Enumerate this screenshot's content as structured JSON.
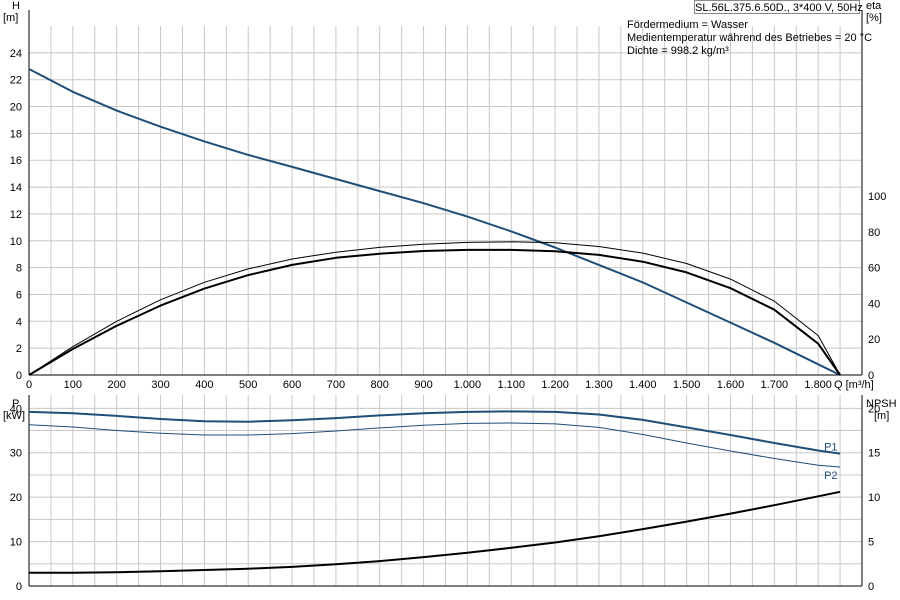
{
  "chart_data": [
    {
      "type": "line",
      "title": "SL.56L.375.6.50D., 3*400 V, 50Hz",
      "annotations": [
        "Fördermedium = Wasser",
        "Medientemperatur während des Betriebes = 20 °C",
        "Dichte = 998.2 kg/m³"
      ],
      "xlabel": "Q [m³/h]",
      "xlim": [
        0,
        1900
      ],
      "xticks": [
        0,
        100,
        200,
        300,
        400,
        500,
        600,
        700,
        800,
        900,
        1000,
        1100,
        1200,
        1300,
        1400,
        1500,
        1600,
        1700,
        1800
      ],
      "xtick_labels": [
        "0",
        "100",
        "200",
        "300",
        "400",
        "500",
        "600",
        "700",
        "800",
        "900",
        "1.000",
        "1.100",
        "1.200",
        "1.300",
        "1.400",
        "1.500",
        "1.600",
        "1.700",
        "1.800"
      ],
      "ylabel_left": "H",
      "ylabel_left_unit": "[m]",
      "ylim_left": [
        0,
        26
      ],
      "yticks_left": [
        0,
        2,
        4,
        6,
        8,
        10,
        12,
        14,
        16,
        18,
        20,
        22,
        24
      ],
      "ylabel_right": "eta",
      "ylabel_right_unit": "[%]",
      "ylim_right": [
        0,
        195
      ],
      "yticks_right": [
        0,
        20,
        40,
        60,
        80,
        100
      ],
      "grid": true,
      "series": [
        {
          "axis": "left",
          "color": "#1f4e79",
          "x": [
            0,
            100,
            200,
            300,
            400,
            500,
            600,
            700,
            800,
            900,
            1000,
            1100,
            1200,
            1300,
            1400,
            1500,
            1600,
            1700,
            1800,
            1850
          ],
          "y": [
            22.8,
            21.1,
            19.7,
            18.5,
            17.4,
            16.4,
            15.5,
            14.6,
            13.7,
            12.8,
            11.8,
            10.7,
            9.5,
            8.2,
            6.9,
            5.4,
            3.9,
            2.4,
            0.8,
            0
          ]
        },
        {
          "axis": "right",
          "color": "#000000",
          "x": [
            0,
            100,
            200,
            300,
            400,
            500,
            600,
            700,
            800,
            900,
            1000,
            1100,
            1200,
            1300,
            1400,
            1500,
            1600,
            1700,
            1800,
            1850
          ],
          "y": [
            0,
            14.5,
            27.5,
            38.8,
            48.3,
            55.8,
            61.5,
            65.5,
            67.8,
            69.3,
            69.9,
            69.9,
            69.1,
            67.1,
            63.3,
            57.3,
            48.5,
            36.5,
            17.5,
            0
          ]
        },
        {
          "axis": "right",
          "color": "#000000",
          "thin": true,
          "x": [
            0,
            100,
            200,
            300,
            400,
            500,
            600,
            700,
            800,
            900,
            1000,
            1100,
            1200,
            1300,
            1400,
            1500,
            1600,
            1700,
            1800,
            1850
          ],
          "y": [
            0,
            15.8,
            30,
            42,
            51.8,
            59.3,
            64.8,
            68.6,
            71.3,
            73.1,
            74.1,
            74.4,
            73.9,
            71.8,
            68.1,
            62.3,
            53.6,
            41.3,
            22,
            0
          ]
        }
      ]
    },
    {
      "type": "line",
      "xlim": [
        0,
        1900
      ],
      "ylabel_left": "P",
      "ylabel_left_unit": "[kW]",
      "ylim_left": [
        0,
        43
      ],
      "yticks_left": [
        0,
        10,
        20,
        30,
        40
      ],
      "ylabel_right": "NPSH",
      "ylabel_right_unit": "[m]",
      "ylim_right": [
        0,
        21.5
      ],
      "yticks_right": [
        0,
        5,
        10,
        15,
        20
      ],
      "grid": true,
      "series": [
        {
          "name": "P1",
          "axis": "left",
          "color": "#1f4e79",
          "x": [
            0,
            100,
            200,
            300,
            400,
            500,
            600,
            700,
            800,
            900,
            1000,
            1100,
            1200,
            1300,
            1400,
            1500,
            1600,
            1700,
            1800,
            1850
          ],
          "y": [
            39.2,
            38.9,
            38.3,
            37.6,
            37.1,
            37.0,
            37.3,
            37.8,
            38.4,
            38.9,
            39.2,
            39.3,
            39.2,
            38.6,
            37.4,
            35.7,
            34.0,
            32.2,
            30.5,
            29.8
          ]
        },
        {
          "name": "P2",
          "axis": "left",
          "color": "#1f4e79",
          "thin": true,
          "x": [
            0,
            100,
            200,
            300,
            400,
            500,
            600,
            700,
            800,
            900,
            1000,
            1100,
            1200,
            1300,
            1400,
            1500,
            1600,
            1700,
            1800,
            1850
          ],
          "y": [
            36.3,
            35.8,
            35.0,
            34.4,
            34.0,
            34.0,
            34.3,
            34.9,
            35.6,
            36.2,
            36.6,
            36.7,
            36.5,
            35.7,
            34.1,
            32.2,
            30.4,
            28.7,
            27.2,
            26.8
          ]
        },
        {
          "axis": "right",
          "color": "#000000",
          "x": [
            0,
            100,
            200,
            300,
            400,
            500,
            600,
            700,
            800,
            900,
            1000,
            1100,
            1200,
            1300,
            1400,
            1500,
            1600,
            1700,
            1800,
            1850
          ],
          "y": [
            1.5,
            1.5,
            1.55,
            1.65,
            1.8,
            1.95,
            2.15,
            2.45,
            2.8,
            3.25,
            3.75,
            4.3,
            4.9,
            5.6,
            6.4,
            7.25,
            8.15,
            9.1,
            10.1,
            10.6
          ]
        }
      ]
    }
  ]
}
